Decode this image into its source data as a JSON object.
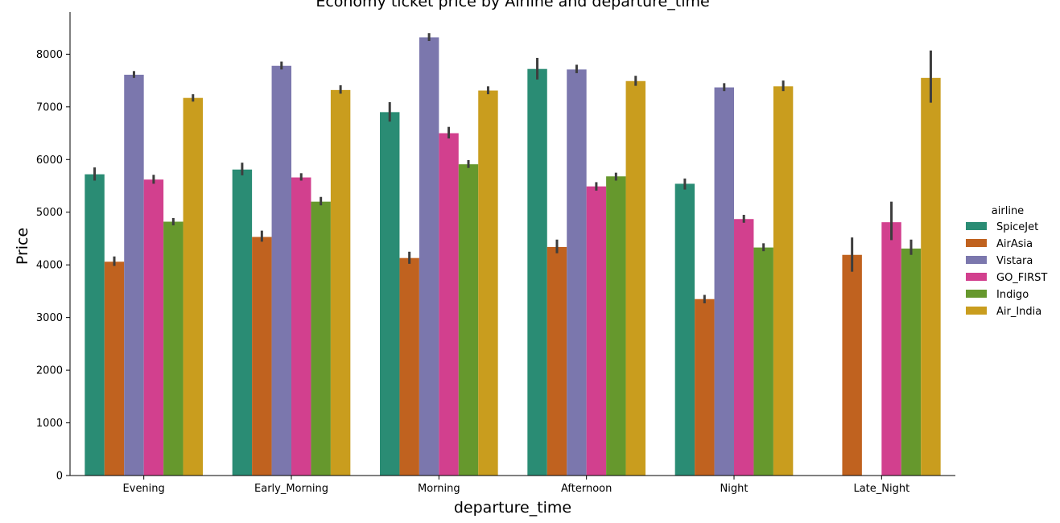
{
  "chart_data": {
    "type": "bar",
    "title": "Economy ticket price by Airline and departure_time",
    "xlabel": "departure_time",
    "ylabel": "Price",
    "ylim": [
      0,
      8800
    ],
    "yticks": [
      0,
      1000,
      2000,
      3000,
      4000,
      5000,
      6000,
      7000,
      8000
    ],
    "grid": false,
    "legend_title": "airline",
    "legend_position": "right",
    "categories": [
      "Evening",
      "Early_Morning",
      "Morning",
      "Afternoon",
      "Night",
      "Late_Night"
    ],
    "series": [
      {
        "name": "SpiceJet",
        "color": "#2a8c74",
        "values": [
          5720,
          5810,
          6900,
          7720,
          5540,
          null
        ],
        "ci": [
          [
            5600,
            5850
          ],
          [
            5700,
            5940
          ],
          [
            6720,
            7090
          ],
          [
            7520,
            7930
          ],
          [
            5430,
            5640
          ],
          null
        ]
      },
      {
        "name": "AirAsia",
        "color": "#c0621f",
        "values": [
          4060,
          4530,
          4130,
          4340,
          3350,
          4190
        ],
        "ci": [
          [
            3980,
            4160
          ],
          [
            4440,
            4650
          ],
          [
            4020,
            4250
          ],
          [
            4220,
            4480
          ],
          [
            3270,
            3430
          ],
          [
            3870,
            4520
          ]
        ]
      },
      {
        "name": "Vistara",
        "color": "#7b77ad",
        "values": [
          7610,
          7780,
          8320,
          7710,
          7370,
          null
        ],
        "ci": [
          [
            7550,
            7680
          ],
          [
            7710,
            7860
          ],
          [
            8250,
            8400
          ],
          [
            7640,
            7800
          ],
          [
            7300,
            7450
          ],
          null
        ]
      },
      {
        "name": "GO_FIRST",
        "color": "#d2408e",
        "values": [
          5620,
          5660,
          6500,
          5490,
          4870,
          4810
        ],
        "ci": [
          [
            5540,
            5710
          ],
          [
            5600,
            5740
          ],
          [
            6400,
            6620
          ],
          [
            5410,
            5570
          ],
          [
            4800,
            4950
          ],
          [
            4470,
            5200
          ]
        ]
      },
      {
        "name": "Indigo",
        "color": "#66982d",
        "values": [
          4820,
          5200,
          5910,
          5680,
          4330,
          4310
        ],
        "ci": [
          [
            4750,
            4890
          ],
          [
            5130,
            5290
          ],
          [
            5840,
            5990
          ],
          [
            5600,
            5750
          ],
          [
            4260,
            4410
          ],
          [
            4190,
            4480
          ]
        ]
      },
      {
        "name": "Air_India",
        "color": "#c99d1e",
        "values": [
          7170,
          7320,
          7310,
          7490,
          7390,
          7550
        ],
        "ci": [
          [
            7100,
            7240
          ],
          [
            7250,
            7410
          ],
          [
            7240,
            7390
          ],
          [
            7400,
            7590
          ],
          [
            7300,
            7500
          ],
          [
            7080,
            8070
          ]
        ]
      }
    ]
  }
}
